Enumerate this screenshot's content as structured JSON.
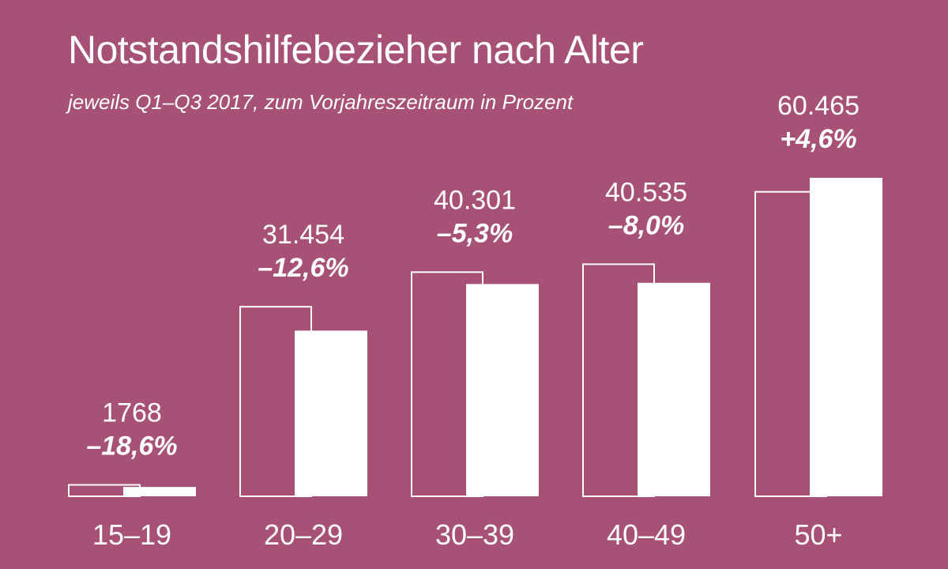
{
  "title": "Notstandshilfebezieher nach Alter",
  "subtitle": "jeweils Q1–Q3 2017, zum Vorjahreszeitraum in Prozent",
  "colors": {
    "background": "#a65175",
    "bar": "#ffffff",
    "outline": "#ffffff"
  },
  "chart_data": {
    "type": "bar",
    "title": "Notstandshilfebezieher nach Alter",
    "subtitle": "jeweils Q1–Q3 2017, zum Vorjahreszeitraum in Prozent",
    "categories": [
      "15–19",
      "20–29",
      "30–39",
      "40–49",
      "50+"
    ],
    "series": [
      {
        "values": [
          2172,
          35986,
          42554,
          44060,
          57806
        ],
        "style": "outline"
      },
      {
        "values": [
          1768,
          31454,
          40301,
          40535,
          60465
        ],
        "style": "filled"
      }
    ],
    "value_labels": [
      "1768",
      "31.454",
      "40.301",
      "40.535",
      "60.465"
    ],
    "change_labels": [
      "–18,6%",
      "–12,6%",
      "–5,3%",
      "–8,0%",
      "+4,6%"
    ],
    "ylim": [
      0,
      60465
    ],
    "grid": false,
    "legend": "none"
  }
}
